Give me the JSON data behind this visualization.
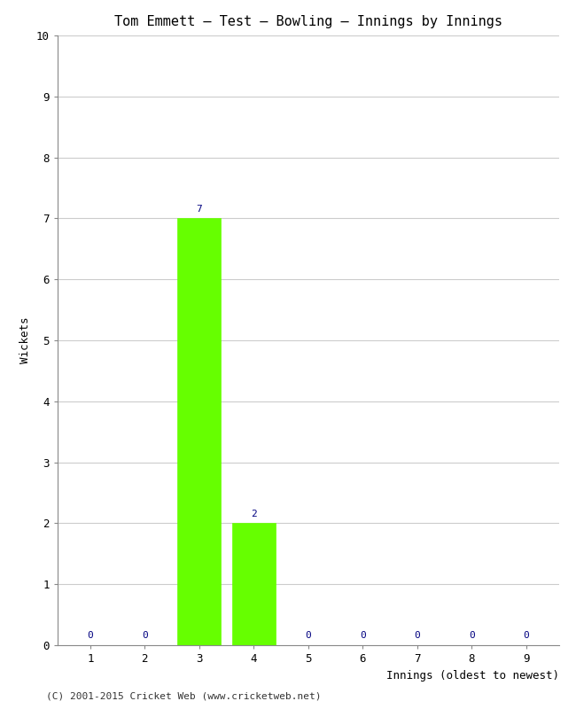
{
  "title": "Tom Emmett – Test – Bowling – Innings by Innings",
  "xlabel": "Innings (oldest to newest)",
  "ylabel": "Wickets",
  "categories": [
    1,
    2,
    3,
    4,
    5,
    6,
    7,
    8,
    9
  ],
  "values": [
    0,
    0,
    7,
    2,
    0,
    0,
    0,
    0,
    0
  ],
  "bar_color": "#66ff00",
  "bar_edge_color": "#66ff00",
  "ylim": [
    0,
    10
  ],
  "yticks": [
    0,
    1,
    2,
    3,
    4,
    5,
    6,
    7,
    8,
    9,
    10
  ],
  "xticks": [
    1,
    2,
    3,
    4,
    5,
    6,
    7,
    8,
    9
  ],
  "label_color": "#000080",
  "background_color": "#ffffff",
  "grid_color": "#cccccc",
  "footer": "(C) 2001-2015 Cricket Web (www.cricketweb.net)",
  "title_fontsize": 11,
  "axis_label_fontsize": 9,
  "tick_label_fontsize": 9,
  "bar_label_fontsize": 8
}
